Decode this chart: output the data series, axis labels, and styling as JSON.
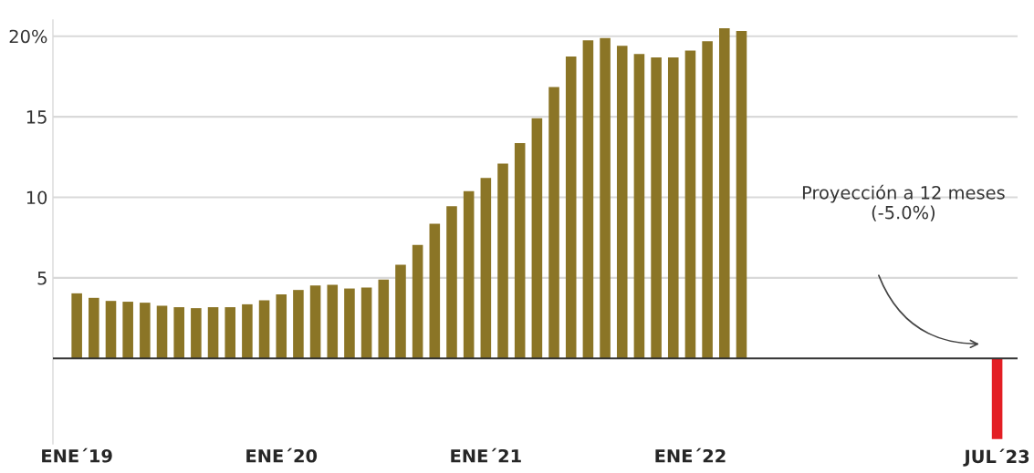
{
  "chart_data": {
    "type": "bar",
    "categories": [
      "ENE´19",
      null,
      null,
      null,
      null,
      null,
      null,
      null,
      null,
      null,
      null,
      null,
      "ENE´20",
      null,
      null,
      null,
      null,
      null,
      null,
      null,
      null,
      null,
      null,
      null,
      "ENE´21",
      null,
      null,
      null,
      null,
      null,
      null,
      null,
      null,
      null,
      null,
      null,
      "ENE´22",
      null,
      null,
      null,
      null,
      null,
      null,
      null,
      null,
      null,
      null,
      null,
      null,
      null,
      null,
      null,
      null,
      null,
      "JUL´23"
    ],
    "values": [
      4.04,
      3.76,
      3.57,
      3.52,
      3.46,
      3.27,
      3.18,
      3.12,
      3.18,
      3.18,
      3.36,
      3.61,
      3.98,
      4.25,
      4.53,
      4.57,
      4.34,
      4.4,
      4.89,
      5.81,
      7.05,
      8.36,
      9.45,
      10.38,
      11.2,
      12.09,
      13.36,
      14.9,
      16.84,
      18.74,
      19.74,
      19.89,
      19.4,
      18.89,
      18.68,
      18.68,
      19.1,
      19.68,
      20.49,
      20.32,
      null,
      null,
      null,
      null,
      null,
      null,
      null,
      null,
      null,
      null,
      null,
      null,
      null,
      null,
      -5.0
    ],
    "colors": [
      "#8b7526",
      "#8b7526",
      "#8b7526",
      "#8b7526",
      "#8b7526",
      "#8b7526",
      "#8b7526",
      "#8b7526",
      "#8b7526",
      "#8b7526",
      "#8b7526",
      "#8b7526",
      "#8b7526",
      "#8b7526",
      "#8b7526",
      "#8b7526",
      "#8b7526",
      "#8b7526",
      "#8b7526",
      "#8b7526",
      "#8b7526",
      "#8b7526",
      "#8b7526",
      "#8b7526",
      "#8b7526",
      "#8b7526",
      "#8b7526",
      "#8b7526",
      "#8b7526",
      "#8b7526",
      "#8b7526",
      "#8b7526",
      "#8b7526",
      "#8b7526",
      "#8b7526",
      "#8b7526",
      "#8b7526",
      "#8b7526",
      "#8b7526",
      "#8b7526",
      null,
      null,
      null,
      null,
      null,
      null,
      null,
      null,
      null,
      null,
      null,
      null,
      null,
      null,
      "#e31e24"
    ],
    "ylim": [
      -5.3,
      21
    ],
    "yticks": [
      5,
      10,
      15,
      {
        "value": 20,
        "label": "20%"
      }
    ],
    "grid": "y",
    "ref_lines": [
      {
        "axis": "y",
        "value": 0,
        "color": "#333333"
      }
    ],
    "annotations": [
      "Proyección a 12 meses\n(-5.0%)"
    ]
  }
}
